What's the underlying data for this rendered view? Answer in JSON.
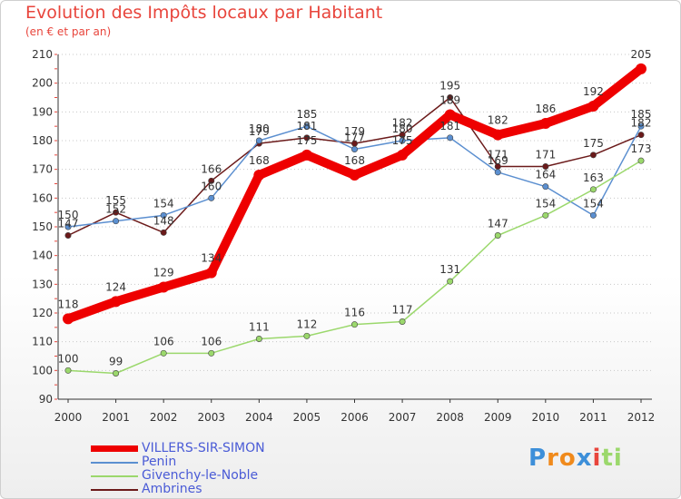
{
  "chart_data": {
    "type": "line",
    "title": "Evolution des Impôts locaux par Habitant",
    "subtitle": "(en € et par an)",
    "xlabel": "",
    "ylabel": "",
    "ylim": [
      90,
      210
    ],
    "yticks": [
      90,
      100,
      110,
      120,
      130,
      140,
      150,
      160,
      170,
      180,
      190,
      200,
      210
    ],
    "grid": "horizontal dotted",
    "legend_position": "bottom-left",
    "categories": [
      "2000",
      "2001",
      "2002",
      "2003",
      "2004",
      "2005",
      "2006",
      "2007",
      "2008",
      "2009",
      "2010",
      "2011",
      "2012"
    ],
    "series": [
      {
        "name": "Ambrines",
        "color": "#6b1a1a",
        "values": [
          147,
          155,
          148,
          166,
          179,
          181,
          179,
          182,
          195,
          171,
          171,
          175,
          182
        ]
      },
      {
        "name": "Penin",
        "color": "#5b8fd0",
        "values": [
          150,
          152,
          154,
          160,
          180,
          185,
          177,
          180,
          181,
          169,
          164,
          154,
          185
        ]
      },
      {
        "name": "Givenchy-le-Noble",
        "color": "#9bd86c",
        "values": [
          100,
          99,
          106,
          106,
          111,
          112,
          116,
          117,
          131,
          147,
          154,
          163,
          173
        ]
      },
      {
        "name": "VILLERS-SIR-SIMON",
        "color": "#ee0000",
        "values": [
          118,
          124,
          129,
          134,
          168,
          175,
          168,
          175,
          189,
          182,
          186,
          192,
          205
        ]
      }
    ],
    "legend_order": [
      "VILLERS-SIR-SIMON",
      "Penin",
      "Givenchy-le-Noble",
      "Ambrines"
    ]
  },
  "logo": {
    "text": "Proxiti",
    "letters": [
      "P",
      "r",
      "o",
      "x",
      "i",
      "t",
      "i"
    ],
    "colors": [
      "#3d8fd9",
      "#f08a1c",
      "#f08a1c",
      "#3d8fd9",
      "#e8453c",
      "#9bd86c",
      "#9bd86c"
    ]
  }
}
